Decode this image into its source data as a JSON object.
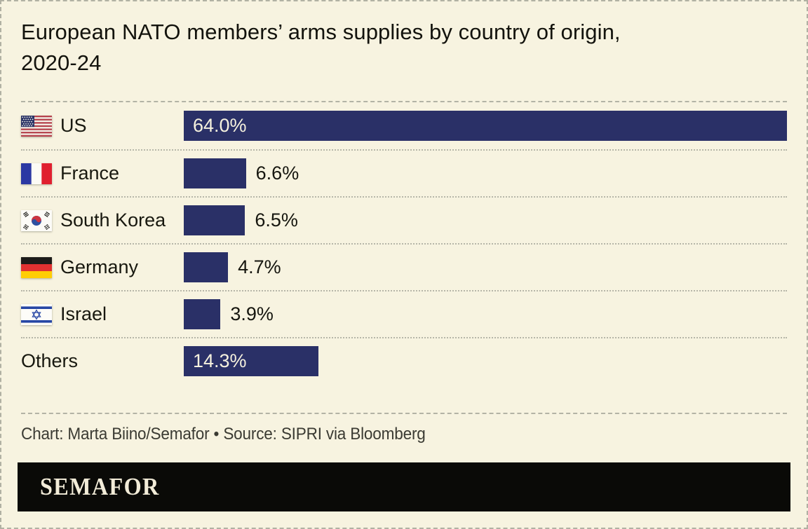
{
  "title": {
    "line1": "European NATO members’ arms supplies by country of origin,",
    "line2": "2020-24"
  },
  "chart_data": {
    "type": "bar",
    "orientation": "horizontal",
    "title": "European NATO members’ arms supplies by country of origin, 2020-24",
    "categories": [
      "US",
      "France",
      "South Korea",
      "Germany",
      "Israel",
      "Others"
    ],
    "values": [
      64.0,
      6.6,
      6.5,
      4.7,
      3.9,
      14.3
    ],
    "value_labels": [
      "64.0%",
      "6.6%",
      "6.5%",
      "4.7%",
      "3.9%",
      "14.3%"
    ],
    "label_inside": [
      true,
      false,
      false,
      false,
      false,
      true
    ],
    "flags": [
      "us",
      "fr",
      "kr",
      "de",
      "il",
      null
    ],
    "unit": "%",
    "xmax": 64.0,
    "grid": false,
    "legend": false,
    "bar_color": "#2a3067"
  },
  "footer": {
    "credits": "Chart: Marta Biino/Semafor • Source: SIPRI via Bloomberg",
    "brand": "SEMAFOR"
  },
  "colors": {
    "background": "#f7f3e0",
    "bar": "#2a3067",
    "text": "#14140e",
    "separator": "#b3b3a5",
    "credits_text": "#3b3b33",
    "banner_bg": "#0a0a07",
    "banner_text": "#f2ecd8",
    "value_inside_text": "#f5f1de"
  }
}
